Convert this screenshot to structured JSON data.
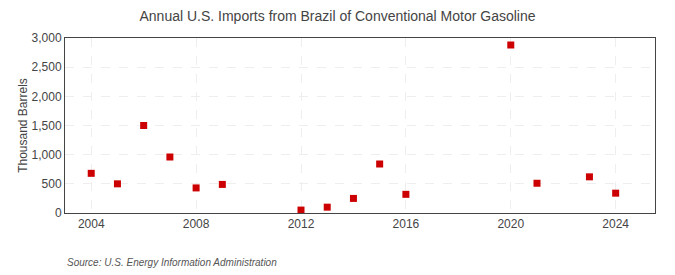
{
  "chart_data": {
    "type": "scatter",
    "title": "Annual U.S. Imports from Brazil of Conventional Motor Gasoline",
    "ylabel": "Thousand Barrels",
    "annotations": [
      {
        "text": "Source: U.S. Energy Information Administration"
      }
    ],
    "x": [
      2004,
      2005,
      2006,
      2007,
      2008,
      2009,
      2012,
      2013,
      2014,
      2015,
      2016,
      2020,
      2021,
      2023,
      2024
    ],
    "values": [
      680,
      500,
      1500,
      960,
      430,
      490,
      50,
      100,
      250,
      840,
      320,
      2880,
      510,
      620,
      340
    ],
    "color": "#cc0000",
    "marker": "square",
    "xlim": [
      2003.0,
      2025.5
    ],
    "xticks": [
      2004,
      2008,
      2012,
      2016,
      2020,
      2024
    ],
    "ylim": [
      0,
      3000
    ],
    "yticks": [
      0,
      500,
      {
        "value": 1000,
        "label": "1,000"
      },
      {
        "value": 1500,
        "label": "1,500"
      },
      {
        "value": 2000,
        "label": "2,000"
      },
      {
        "value": 2500,
        "label": "2,500"
      },
      {
        "value": 3000,
        "label": "3,000"
      }
    ],
    "grid": true
  }
}
